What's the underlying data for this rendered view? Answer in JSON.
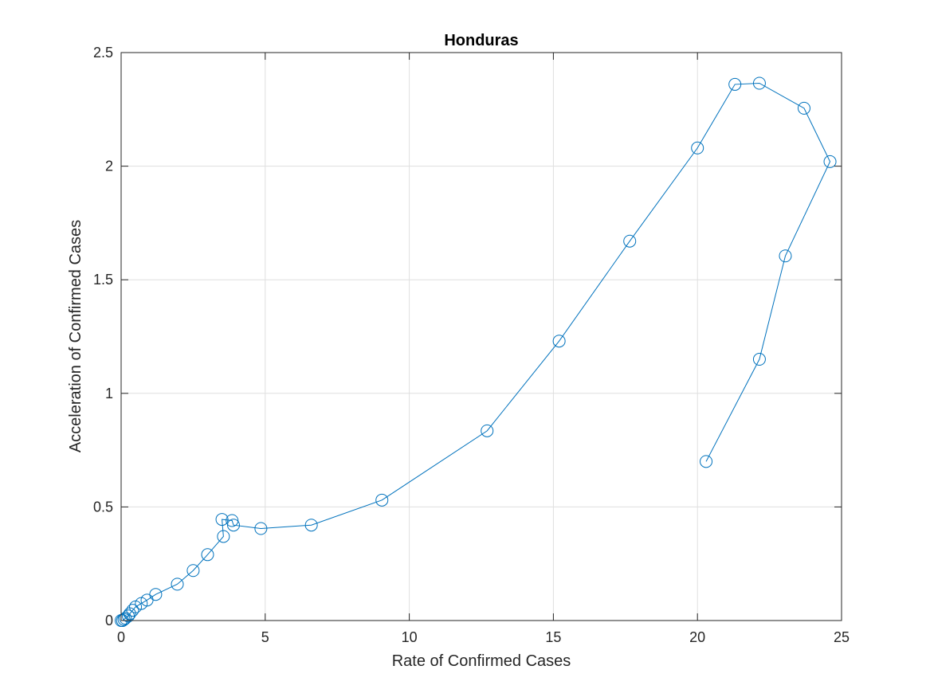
{
  "chart_data": {
    "type": "line",
    "title": "Honduras",
    "xlabel": "Rate of Confirmed Cases",
    "ylabel": "Acceleration of Confirmed Cases",
    "xlim": [
      0,
      25
    ],
    "ylim": [
      0,
      2.5
    ],
    "xticks": [
      0,
      5,
      10,
      15,
      20,
      25
    ],
    "xtick_labels": [
      "0",
      "5",
      "10",
      "15",
      "20",
      "25"
    ],
    "yticks": [
      0,
      0.5,
      1,
      1.5,
      2,
      2.5
    ],
    "ytick_labels": [
      "0",
      "0.5",
      "1",
      "1.5",
      "2",
      "2.5"
    ],
    "grid": true,
    "marker": "open-circle",
    "line_color": "#0072BD",
    "series": [
      {
        "x": [
          0.0,
          0.05,
          0.1,
          0.15,
          0.25,
          0.3,
          0.4,
          0.5,
          0.7,
          0.9,
          1.2,
          1.95,
          2.5,
          3.0,
          3.55,
          3.5,
          3.85,
          3.9,
          4.85,
          6.6,
          9.05,
          12.7,
          15.2,
          17.65,
          20.0,
          21.3,
          22.15,
          23.7,
          24.6,
          23.05,
          22.15,
          20.3
        ],
        "y": [
          0.0,
          0.0,
          0.005,
          0.01,
          0.02,
          0.03,
          0.045,
          0.06,
          0.075,
          0.09,
          0.115,
          0.16,
          0.22,
          0.29,
          0.37,
          0.445,
          0.44,
          0.42,
          0.405,
          0.42,
          0.53,
          0.835,
          1.23,
          1.67,
          2.08,
          2.36,
          2.365,
          2.255,
          2.02,
          1.605,
          1.15,
          0.7
        ]
      }
    ]
  }
}
